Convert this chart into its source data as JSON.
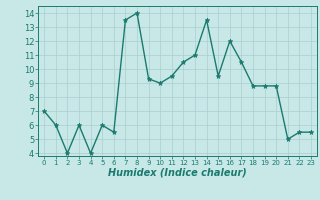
{
  "x": [
    0,
    1,
    2,
    3,
    4,
    5,
    6,
    7,
    8,
    9,
    10,
    11,
    12,
    13,
    14,
    15,
    16,
    17,
    18,
    19,
    20,
    21,
    22,
    23
  ],
  "y": [
    7,
    6,
    4,
    6,
    4,
    6,
    5.5,
    13.5,
    14,
    9.3,
    9,
    9.5,
    10.5,
    11,
    13.5,
    9.5,
    12,
    10.5,
    8.8,
    8.8,
    8.8,
    5,
    5.5,
    5.5
  ],
  "line_color": "#1a7a6e",
  "marker": "*",
  "marker_color": "#1a7a6e",
  "bg_color": "#c8e8e8",
  "grid_color": "#aacece",
  "xlabel": "Humidex (Indice chaleur)",
  "xlim": [
    -0.5,
    23.5
  ],
  "ylim": [
    3.8,
    14.5
  ],
  "yticks": [
    4,
    5,
    6,
    7,
    8,
    9,
    10,
    11,
    12,
    13,
    14
  ],
  "xticks": [
    0,
    1,
    2,
    3,
    4,
    5,
    6,
    7,
    8,
    9,
    10,
    11,
    12,
    13,
    14,
    15,
    16,
    17,
    18,
    19,
    20,
    21,
    22,
    23
  ],
  "tick_color": "#1a7a6e",
  "font_color": "#1a7a6e",
  "linewidth": 1.0,
  "markersize": 3.5
}
